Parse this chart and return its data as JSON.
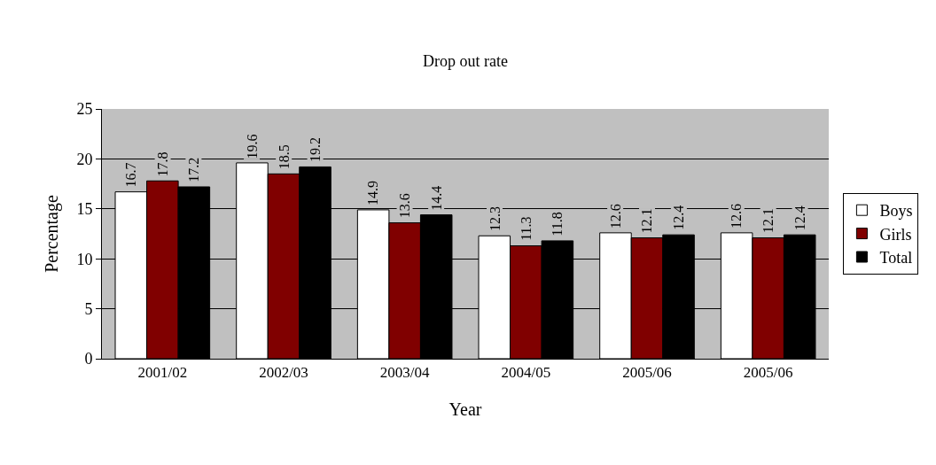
{
  "chart_data": {
    "type": "bar",
    "title": "Drop out rate",
    "xlabel": "Year",
    "ylabel": "Percentage",
    "categories": [
      "2001/02",
      "2002/03",
      "2003/04",
      "2004/05",
      "2005/06",
      "2005/06"
    ],
    "series": [
      {
        "name": "Boys",
        "color": "#ffffff",
        "values": [
          16.7,
          19.6,
          14.9,
          12.3,
          12.6,
          12.6
        ]
      },
      {
        "name": "Girls",
        "color": "#800000",
        "values": [
          17.8,
          18.5,
          13.6,
          11.3,
          12.1,
          12.1
        ]
      },
      {
        "name": "Total",
        "color": "#000000",
        "values": [
          17.2,
          19.2,
          14.4,
          11.8,
          12.4,
          12.4
        ]
      }
    ],
    "ylim": [
      0,
      25
    ],
    "yticks": [
      0,
      5,
      10,
      15,
      20,
      25
    ],
    "grid": "y",
    "legend": "right",
    "data_labels": true
  }
}
